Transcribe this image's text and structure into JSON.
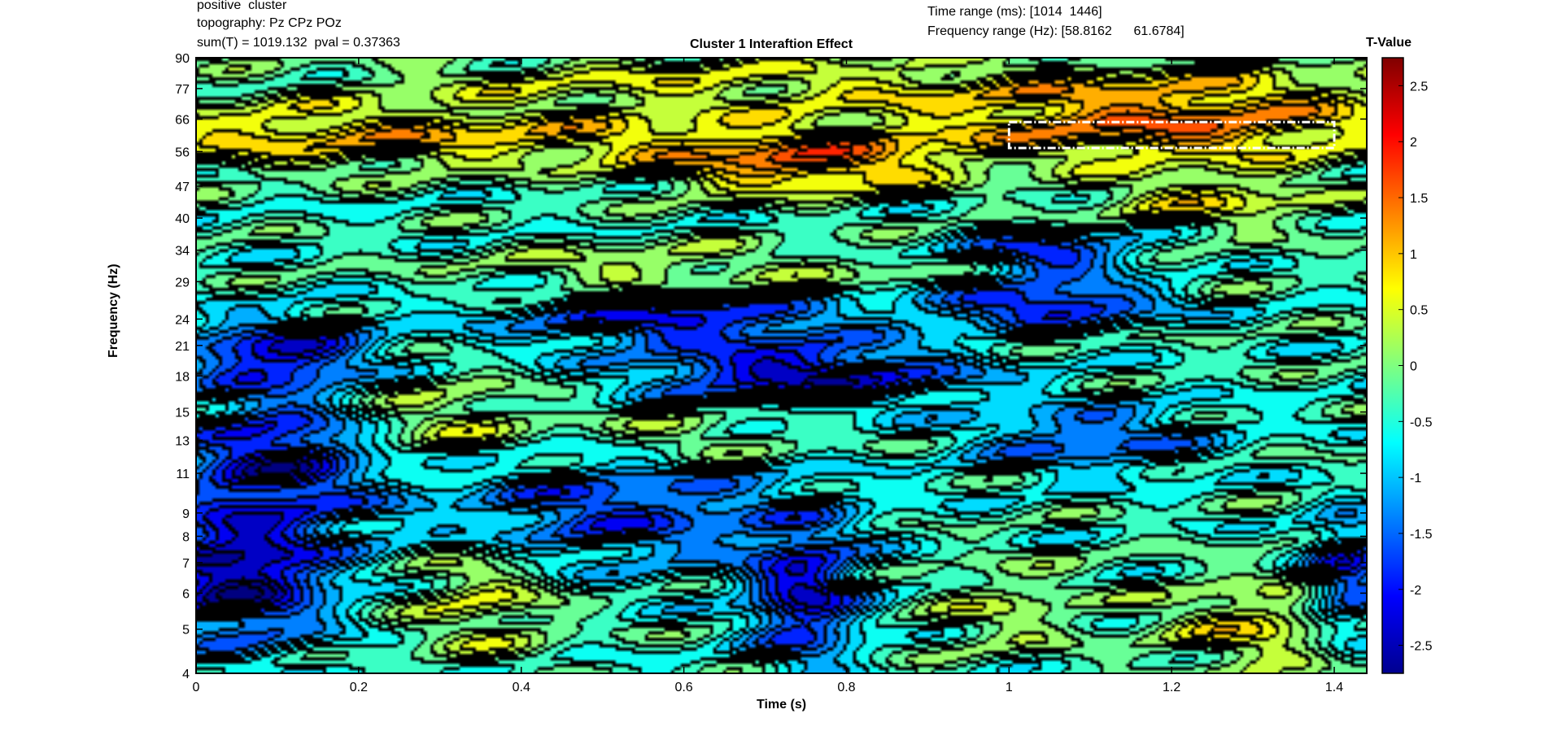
{
  "info": {
    "line1": "positive  cluster",
    "line2": "topography: Pz CPz POz",
    "line3": "sum(T) = 1019.132  pval = 0.37363",
    "time_range": "Time range (ms): [1014  1446]",
    "freq_range": "Frequency range (Hz): [58.8162      61.6784]"
  },
  "chart_data": {
    "type": "heatmap",
    "title": "Cluster 1 Interaftion Effect",
    "xlabel": "Time (s)",
    "ylabel": "Frequency (Hz)",
    "xlim": [
      0,
      1.44
    ],
    "x_ticks": [
      0,
      0.2,
      0.4,
      0.6,
      0.8,
      1,
      1.2,
      1.4
    ],
    "x_tick_labels": [
      "0",
      "0.2",
      "0.4",
      "0.6",
      "0.8",
      "1",
      "1.2",
      "1.4"
    ],
    "y_scale": "log",
    "ylim": [
      4,
      90
    ],
    "y_ticks": [
      4,
      5,
      6,
      7,
      8,
      9,
      11,
      13,
      15,
      18,
      21,
      24,
      29,
      34,
      40,
      47,
      56,
      66,
      77,
      90
    ],
    "y_tick_labels": [
      "4",
      "5",
      "6",
      "7",
      "8",
      "9",
      "11",
      "13",
      "15",
      "18",
      "21",
      "24",
      "29",
      "34",
      "40",
      "47",
      "56",
      "66",
      "77",
      "90"
    ],
    "colorbar": {
      "label": "T-Value",
      "range": [
        -2.75,
        2.75
      ],
      "ticks": [
        2.5,
        2,
        1.5,
        1,
        0.5,
        0,
        -0.5,
        -1,
        -1.5,
        -2,
        -2.5
      ],
      "tick_labels": [
        "2.5",
        "2",
        "1.5",
        "1",
        "0.5",
        "0",
        "-0.5",
        "-1",
        "-1.5",
        "-2",
        "-2.5"
      ],
      "colormap": "jet"
    },
    "cluster_box": {
      "time_s": [
        1.0,
        1.4
      ],
      "freq_hz": [
        57,
        65
      ]
    },
    "blobs": [
      {
        "t": 0.75,
        "f": 52,
        "amp": 1.6,
        "st": 0.18,
        "sf": 0.05
      },
      {
        "t": 1.2,
        "f": 61,
        "amp": 1.5,
        "st": 0.3,
        "sf": 0.05
      },
      {
        "t": 0.1,
        "f": 61,
        "amp": 1.0,
        "st": 0.3,
        "sf": 0.06
      },
      {
        "t": 0.5,
        "f": 60,
        "amp": 0.9,
        "st": 0.35,
        "sf": 0.05
      },
      {
        "t": 1.2,
        "f": 75,
        "amp": 1.2,
        "st": 0.35,
        "sf": 0.05
      },
      {
        "t": 0.6,
        "f": 80,
        "amp": 0.8,
        "st": 0.4,
        "sf": 0.05
      },
      {
        "t": 1.25,
        "f": 44,
        "amp": 1.0,
        "st": 0.15,
        "sf": 0.05
      },
      {
        "t": 0.55,
        "f": 30,
        "amp": 0.8,
        "st": 0.2,
        "sf": 0.05
      },
      {
        "t": 1.0,
        "f": 30,
        "amp": 0.6,
        "st": 0.25,
        "sf": 0.05
      },
      {
        "t": 1.05,
        "f": 33,
        "amp": -1.9,
        "st": 0.12,
        "sf": 0.04
      },
      {
        "t": 1.05,
        "f": 26,
        "amp": -2.0,
        "st": 0.15,
        "sf": 0.04
      },
      {
        "t": 0.75,
        "f": 18,
        "amp": -2.0,
        "st": 0.2,
        "sf": 0.05
      },
      {
        "t": 0.1,
        "f": 20,
        "amp": -1.8,
        "st": 0.12,
        "sf": 0.06
      },
      {
        "t": 0.6,
        "f": 24,
        "amp": -1.7,
        "st": 0.22,
        "sf": 0.05
      },
      {
        "t": 0.1,
        "f": 12,
        "amp": -1.8,
        "st": 0.12,
        "sf": 0.1
      },
      {
        "t": 0.05,
        "f": 6.5,
        "amp": -2.2,
        "st": 0.12,
        "sf": 0.12
      },
      {
        "t": 0.75,
        "f": 5.8,
        "amp": -1.8,
        "st": 0.07,
        "sf": 0.12
      },
      {
        "t": 0.3,
        "f": 14,
        "amp": 0.8,
        "st": 0.12,
        "sf": 0.08
      },
      {
        "t": 0.6,
        "f": 13,
        "amp": 0.7,
        "st": 0.15,
        "sf": 0.05
      },
      {
        "t": 0.35,
        "f": 6,
        "amp": 0.9,
        "st": 0.1,
        "sf": 0.12
      },
      {
        "t": 1.3,
        "f": 5,
        "amp": 1.0,
        "st": 0.12,
        "sf": 0.08
      },
      {
        "t": 1.0,
        "f": 5.5,
        "amp": 0.6,
        "st": 0.1,
        "sf": 0.08
      },
      {
        "t": 0.5,
        "f": 9,
        "amp": -1.4,
        "st": 0.25,
        "sf": 0.1
      },
      {
        "t": 1.1,
        "f": 13,
        "amp": -1.2,
        "st": 0.15,
        "sf": 0.06
      },
      {
        "t": 1.42,
        "f": 6.5,
        "amp": -1.6,
        "st": 0.05,
        "sf": 0.1
      }
    ]
  }
}
